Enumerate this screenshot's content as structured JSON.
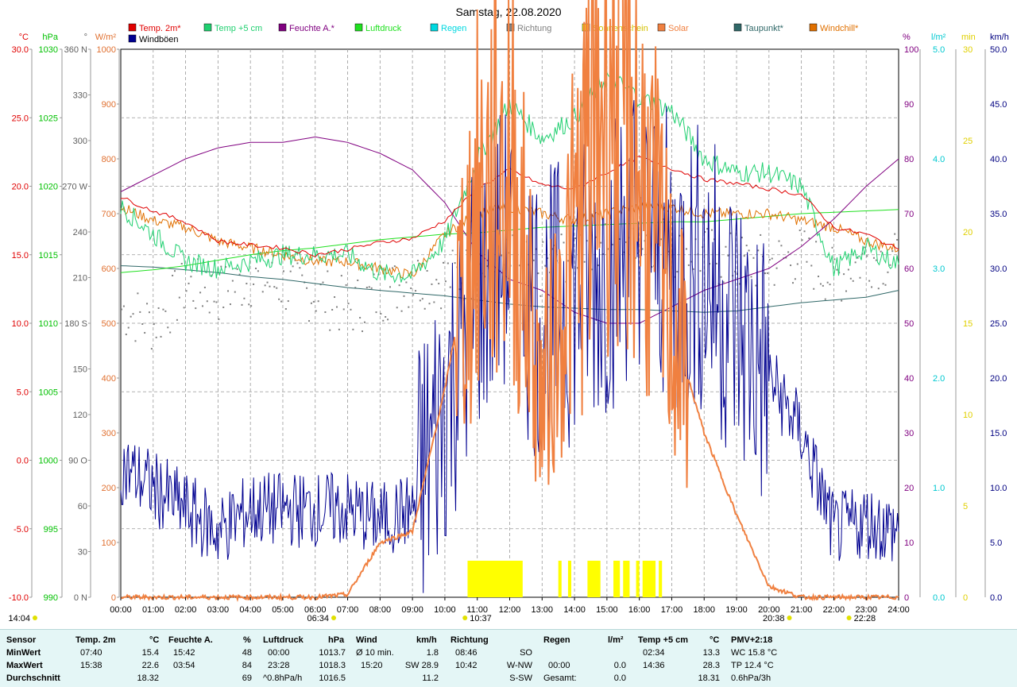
{
  "title": "Samstag, 22.08.2020",
  "legend": [
    {
      "name": "Temp. 2m*",
      "color": "#e00000"
    },
    {
      "name": "Temp +5 cm",
      "color": "#20d070"
    },
    {
      "name": "Feuchte A.*",
      "color": "#800080"
    },
    {
      "name": "Luftdruck",
      "color": "#20e020"
    },
    {
      "name": "Regen",
      "color": "#00d8e0"
    },
    {
      "name": "Richtung",
      "color": "#808080"
    },
    {
      "name": "Sonnenschein",
      "color": "#ffff00"
    },
    {
      "name": "Solar",
      "color": "#f08040"
    },
    {
      "name": "Taupunkt*",
      "color": "#306868"
    },
    {
      "name": "Windchill*",
      "color": "#e07000"
    },
    {
      "name": "Windböen",
      "color": "#000090"
    }
  ],
  "axes": [
    {
      "unit": "°C",
      "color": "#e00000",
      "ticks": [
        "30.0",
        "25.0",
        "20.0",
        "15.0",
        "10.0",
        "5.0",
        "0.0",
        "-5.0",
        "-10.0"
      ]
    },
    {
      "unit": "hPa",
      "color": "#00c000",
      "ticks": [
        "1030",
        "1025",
        "1020",
        "1015",
        "1010",
        "1005",
        "1000",
        "995",
        "990"
      ]
    },
    {
      "unit": "°",
      "color": "#606060",
      "ticks": [
        "360 N",
        "330",
        "300",
        "270 W",
        "240",
        "210",
        "180 S",
        "150",
        "120",
        "90 O",
        "60",
        "30",
        "0 N"
      ]
    },
    {
      "unit": "W/m²",
      "color": "#e07030",
      "ticks": [
        "1000",
        "900",
        "800",
        "700",
        "600",
        "500",
        "400",
        "300",
        "200",
        "100",
        "0"
      ]
    },
    {
      "unit": "%",
      "color": "#800080",
      "ticks": [
        "100",
        "90",
        "80",
        "70",
        "60",
        "50",
        "40",
        "30",
        "20",
        "10",
        "0"
      ]
    },
    {
      "unit": "l/m²",
      "color": "#00c8d0",
      "ticks": [
        "5.0",
        "4.0",
        "3.0",
        "2.0",
        "1.0",
        "0.0"
      ]
    },
    {
      "unit": "min",
      "color": "#e0d000",
      "ticks": [
        "30",
        "25",
        "20",
        "15",
        "10",
        "5",
        "0"
      ]
    },
    {
      "unit": "km/h",
      "color": "#000080",
      "ticks": [
        "50.0",
        "45.0",
        "40.0",
        "35.0",
        "30.0",
        "25.0",
        "20.0",
        "15.0",
        "10.0",
        "5.0",
        "0.0"
      ]
    }
  ],
  "time_labels": [
    "00:00",
    "01:00",
    "02:00",
    "03:00",
    "04:00",
    "05:00",
    "06:00",
    "07:00",
    "08:00",
    "09:00",
    "10:00",
    "11:00",
    "12:00",
    "13:00",
    "14:00",
    "15:00",
    "16:00",
    "17:00",
    "18:00",
    "19:00",
    "20:00",
    "21:00",
    "22:00",
    "23:00",
    "24:00"
  ],
  "markers": {
    "moon_rise": "14:04",
    "sunrise": "06:34",
    "noon": "10:37",
    "sunset": "20:38",
    "moon_set": "22:28"
  },
  "chart_data": {
    "type": "line",
    "title": "Samstag, 22.08.2020",
    "x_hours": [
      0,
      1,
      2,
      3,
      4,
      5,
      6,
      7,
      8,
      9,
      10,
      11,
      12,
      13,
      14,
      15,
      16,
      17,
      18,
      19,
      20,
      21,
      22,
      23,
      24
    ],
    "xlim": [
      0,
      24
    ],
    "series": [
      {
        "name": "Temp. 2m*",
        "axis": "°C",
        "values": [
          19.2,
          18.2,
          17.4,
          16.0,
          15.7,
          15.5,
          15.0,
          15.4,
          15.9,
          16.2,
          17.5,
          19.8,
          21.2,
          20.1,
          19.8,
          21.0,
          22.1,
          21.3,
          20.5,
          20.2,
          19.8,
          19.4,
          17.0,
          16.5,
          15.4
        ]
      },
      {
        "name": "Temp +5 cm",
        "axis": "°C",
        "values": [
          18.5,
          16.5,
          14.5,
          14.0,
          14.5,
          15.0,
          15.0,
          15.0,
          13.6,
          13.5,
          16.0,
          22.0,
          26.0,
          23.5,
          25.0,
          28.0,
          26.5,
          25.5,
          22.0,
          21.0,
          21.0,
          20.0,
          14.0,
          15.5,
          14.3
        ]
      },
      {
        "name": "Feuchte A.*",
        "axis": "%",
        "values": [
          74,
          77,
          80,
          82,
          83,
          83,
          84,
          83,
          81,
          78,
          72,
          63,
          58,
          56,
          52,
          50,
          50,
          53,
          56,
          58,
          60,
          64,
          69,
          75,
          80
        ]
      },
      {
        "name": "Luftdruck",
        "axis": "hPa",
        "values": [
          1013.7,
          1013.9,
          1014.2,
          1014.6,
          1015.0,
          1015.3,
          1015.5,
          1015.8,
          1016.1,
          1016.3,
          1016.5,
          1016.6,
          1016.8,
          1017.0,
          1017.1,
          1017.2,
          1017.3,
          1017.4,
          1017.4,
          1017.6,
          1017.8,
          1018.0,
          1018.1,
          1018.2,
          1018.3
        ]
      },
      {
        "name": "Taupunkt*",
        "axis": "°C",
        "values": [
          14.2,
          14.1,
          13.9,
          13.7,
          13.4,
          13.2,
          12.9,
          12.6,
          12.4,
          12.2,
          12.0,
          11.7,
          11.4,
          11.2,
          11.1,
          11.0,
          11.0,
          10.9,
          10.8,
          10.9,
          11.2,
          11.5,
          11.7,
          11.9,
          12.4
        ]
      },
      {
        "name": "Windchill*",
        "axis": "°C",
        "values": [
          18.5,
          17.5,
          17.0,
          16.0,
          15.5,
          15.0,
          14.5,
          14.5,
          14.0,
          13.5,
          16.5,
          18.0,
          18.5,
          18.0,
          17.5,
          18.0,
          18.5,
          18.5,
          18.0,
          18.0,
          18.0,
          17.5,
          17.0,
          16.0,
          15.4
        ]
      },
      {
        "name": "Solar",
        "axis": "W/m²",
        "values": [
          0,
          0,
          0,
          0,
          0,
          0,
          0,
          5,
          100,
          120,
          380,
          700,
          800,
          350,
          650,
          980,
          800,
          500,
          300,
          150,
          20,
          0,
          0,
          0,
          0
        ]
      },
      {
        "name": "Windböen",
        "axis": "km/h",
        "values": [
          12,
          10,
          8,
          6,
          8,
          8,
          8,
          8,
          7,
          8,
          18,
          28,
          32,
          25,
          28,
          30,
          35,
          30,
          30,
          25,
          20,
          15,
          6,
          7,
          6
        ]
      },
      {
        "name": "Richtung",
        "axis": "°",
        "values": [
          190,
          180,
          205,
          200,
          210,
          205,
          200,
          190,
          200,
          210,
          210,
          215,
          220,
          215,
          230,
          240,
          240,
          230,
          225,
          220,
          220,
          225,
          210,
          225,
          220
        ]
      },
      {
        "name": "Sonnenschein",
        "axis": "min",
        "bars": [
          [
            10.7,
            12.4
          ],
          [
            13.5,
            13.6
          ],
          [
            13.8,
            13.9
          ],
          [
            14.4,
            14.8
          ],
          [
            15.2,
            15.4
          ],
          [
            15.5,
            15.7
          ],
          [
            15.9,
            16.0
          ],
          [
            16.1,
            16.5
          ],
          [
            16.6,
            16.7
          ]
        ]
      }
    ]
  },
  "summary": {
    "rows": [
      "Sensor",
      "MinWert",
      "MaxWert",
      "Durchschnitt"
    ],
    "temp2m": {
      "label": "Temp. 2m",
      "unit": "°C",
      "min_time": "07:40",
      "min": "15.4",
      "max_time": "15:38",
      "max": "22.6",
      "avg": "18.32"
    },
    "feuchte": {
      "label": "Feuchte A.",
      "unit": "%",
      "min_time": "15:42",
      "min": "48",
      "max_time": "03:54",
      "max": "84",
      "avg": "69"
    },
    "luftdruck": {
      "label": "Luftdruck",
      "unit": "hPa",
      "min_time": "00:00",
      "min": "1013.7",
      "max_time": "23:28",
      "max": "1018.3",
      "avg_note": "^0.8hPa/h",
      "avg": "1016.5"
    },
    "wind": {
      "label": "Wind",
      "unit": "km/h",
      "min_time": "Ø 10 min.",
      "min": "1.8",
      "max_time": "15:20",
      "max": "SW 28.9",
      "avg": "11.2"
    },
    "richtung": {
      "label": "Richtung",
      "min_time": "08:46",
      "min": "SO",
      "max_time": "10:42",
      "max": "W-NW",
      "avg": "S-SW"
    },
    "regen": {
      "label": "Regen",
      "unit": "l/m²",
      "max_time": "00:00",
      "max": "0.0",
      "avg_label": "Gesamt:",
      "avg": "0.0"
    },
    "temp5": {
      "label": "Temp +5 cm",
      "unit": "°C",
      "min_time": "02:34",
      "min": "13.3",
      "max_time": "14:36",
      "max": "28.3",
      "avg": "18.31"
    },
    "pmv": {
      "label": "PMV+2:18",
      "wc": "WC 15.8 °C",
      "tp": "TP 12.4 °C",
      "trend": "0.6hPa/3h"
    }
  }
}
